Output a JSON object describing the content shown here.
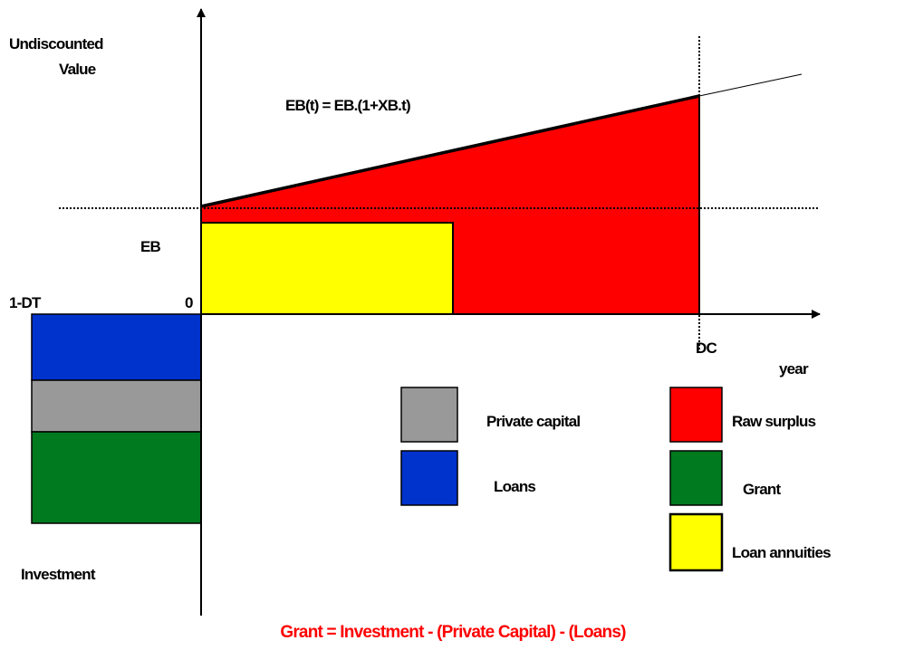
{
  "axis": {
    "y_label": [
      "Undiscounted",
      "Value"
    ],
    "x_label": "year"
  },
  "formula": "EB(t) = EB.(1+XB.t)",
  "markers": {
    "eb": "EB",
    "start": "1-DT",
    "zero": "0",
    "end": "DC"
  },
  "investment_label": "Investment",
  "legend": [
    {
      "label": "Private capital"
    },
    {
      "label": "Loans"
    },
    {
      "label": "Raw surplus"
    },
    {
      "label": "Grant"
    },
    {
      "label": "Loan annuities"
    }
  ],
  "equation": "Grant = Investment - (Private Capital) - (Loans)"
}
